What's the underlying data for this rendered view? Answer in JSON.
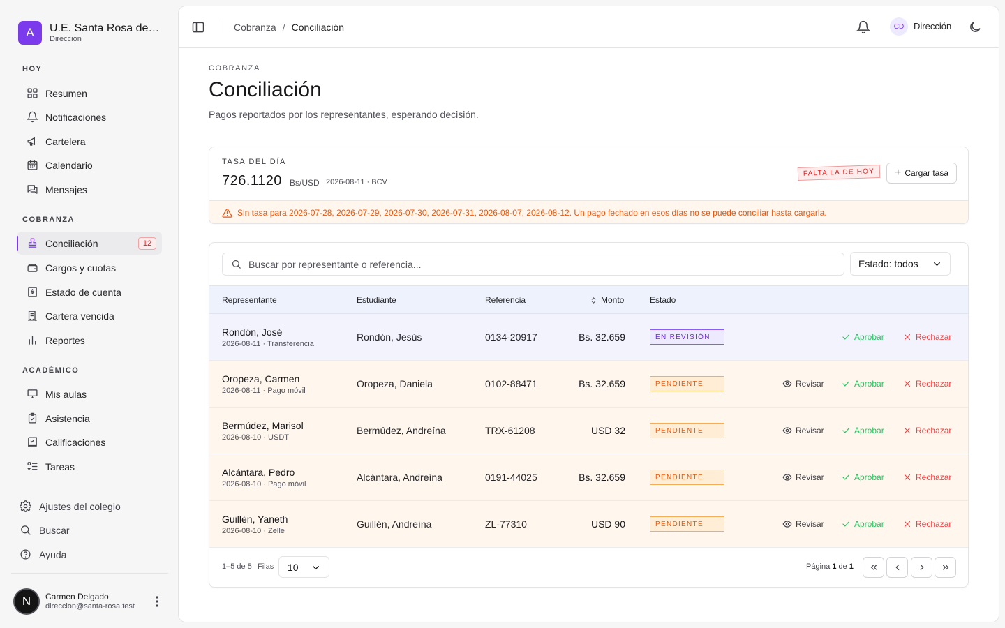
{
  "brand": {
    "logo_letter": "A",
    "name": "U.E. Santa Rosa de Lima",
    "sub": "Dirección",
    "accent": "#7c3aed"
  },
  "sidebar": {
    "sections": [
      {
        "label": "HOY",
        "items": [
          {
            "label": "Resumen",
            "icon": "grid-icon"
          },
          {
            "label": "Notificaciones",
            "icon": "bell-icon"
          },
          {
            "label": "Cartelera",
            "icon": "megaphone-icon"
          },
          {
            "label": "Calendario",
            "icon": "calendar-icon"
          },
          {
            "label": "Mensajes",
            "icon": "messages-icon"
          }
        ]
      },
      {
        "label": "COBRANZA",
        "items": [
          {
            "label": "Conciliación",
            "icon": "stamp-icon",
            "badge": "12",
            "active": true
          },
          {
            "label": "Cargos y cuotas",
            "icon": "wallet-icon"
          },
          {
            "label": "Estado de cuenta",
            "icon": "receipt-icon"
          },
          {
            "label": "Cartera vencida",
            "icon": "receipt-overdue-icon"
          },
          {
            "label": "Reportes",
            "icon": "bar-chart-icon"
          }
        ]
      },
      {
        "label": "ACADÉMICO",
        "items": [
          {
            "label": "Mis aulas",
            "icon": "monitor-icon"
          },
          {
            "label": "Asistencia",
            "icon": "clipboard-check-icon"
          },
          {
            "label": "Calificaciones",
            "icon": "book-check-icon"
          },
          {
            "label": "Tareas",
            "icon": "list-todo-icon"
          }
        ]
      }
    ],
    "footer": [
      {
        "label": "Ajustes del colegio",
        "icon": "gear-icon"
      },
      {
        "label": "Buscar",
        "icon": "search-icon"
      },
      {
        "label": "Ayuda",
        "icon": "help-circle-icon"
      }
    ],
    "user": {
      "avatar_letter": "N",
      "name": "Carmen Delgado",
      "email": "direccion@santa-rosa.test"
    }
  },
  "topbar": {
    "breadcrumb_parent": "Cobranza",
    "breadcrumb_sep": "/",
    "breadcrumb_current": "Conciliación",
    "avatar_initials": "CD",
    "role": "Dirección"
  },
  "page": {
    "eyebrow": "COBRANZA",
    "title": "Conciliación",
    "subtitle": "Pagos reportados por los representantes, esperando decisión."
  },
  "rate": {
    "label": "TASA DEL DÍA",
    "value": "726.1120",
    "unit": "Bs/USD",
    "date_source": "2026-08-11 · BCV",
    "badge": "FALTA LA DE HOY",
    "button": "Cargar tasa",
    "warning": "Sin tasa para 2026-07-28, 2026-07-29, 2026-07-30, 2026-07-31, 2026-08-07, 2026-08-12. Un pago fechado en esos días no se puede conciliar hasta cargarla."
  },
  "table": {
    "search_placeholder": "Buscar por representante o referencia...",
    "status_filter": "Estado: todos",
    "columns": [
      "Representante",
      "Estudiante",
      "Referencia",
      "Monto",
      "Estado"
    ],
    "rows": [
      {
        "rep": "Rondón, José",
        "meta": "2026-08-11 · Transferencia",
        "student": "Rondón, Jesús",
        "ref": "0134-20917",
        "amount": "Bs. 32.659",
        "status": "EN REVISIÓN",
        "status_kind": "review"
      },
      {
        "rep": "Oropeza, Carmen",
        "meta": "2026-08-11 · Pago móvil",
        "student": "Oropeza, Daniela",
        "ref": "0102-88471",
        "amount": "Bs. 32.659",
        "status": "PENDIENTE",
        "status_kind": "pending"
      },
      {
        "rep": "Bermúdez, Marisol",
        "meta": "2026-08-10 · USDT",
        "student": "Bermúdez, Andreína",
        "ref": "TRX-61208",
        "amount": "USD 32",
        "status": "PENDIENTE",
        "status_kind": "pending"
      },
      {
        "rep": "Alcántara, Pedro",
        "meta": "2026-08-10 · Pago móvil",
        "student": "Alcántara, Andreína",
        "ref": "0191-44025",
        "amount": "Bs. 32.659",
        "status": "PENDIENTE",
        "status_kind": "pending"
      },
      {
        "rep": "Guillén, Yaneth",
        "meta": "2026-08-10 · Zelle",
        "student": "Guillén, Andreína",
        "ref": "ZL-77310",
        "amount": "USD 90",
        "status": "PENDIENTE",
        "status_kind": "pending"
      }
    ],
    "actions": {
      "review": "Revisar",
      "approve": "Aprobar",
      "reject": "Rechazar"
    },
    "footer": {
      "count": "1–5 de 5",
      "rows_label": "Filas",
      "rows_value": "10",
      "page_prefix": "Página ",
      "page_current": "1",
      "page_of": " de ",
      "page_total": "1"
    }
  }
}
